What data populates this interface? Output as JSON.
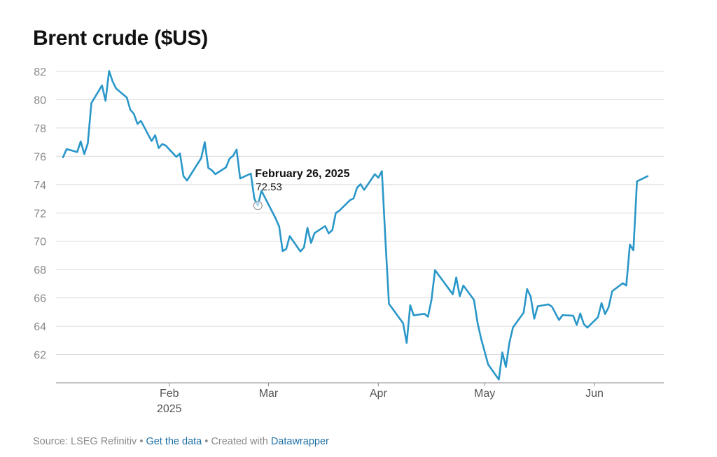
{
  "chart_data": {
    "type": "line",
    "title": "Brent crude ($US)",
    "xlabel": "",
    "ylabel": "",
    "x_ticks": [
      {
        "date": "2025-02-01",
        "label": "Feb",
        "sublabel": "2025"
      },
      {
        "date": "2025-03-01",
        "label": "Mar",
        "sublabel": ""
      },
      {
        "date": "2025-04-01",
        "label": "Apr",
        "sublabel": ""
      },
      {
        "date": "2025-05-01",
        "label": "May",
        "sublabel": ""
      },
      {
        "date": "2025-06-01",
        "label": "Jun",
        "sublabel": ""
      }
    ],
    "xlim": [
      "2025-01-02",
      "2025-06-18"
    ],
    "y_ticks": [
      62,
      64,
      66,
      68,
      70,
      72,
      74,
      76,
      78,
      80,
      82
    ],
    "ylim": [
      60,
      82
    ],
    "grid": true,
    "line_color": "#2a97c9",
    "series": [
      {
        "points": [
          [
            "2025-01-02",
            75.93
          ],
          [
            "2025-01-03",
            76.51
          ],
          [
            "2025-01-06",
            76.3
          ],
          [
            "2025-01-07",
            77.05
          ],
          [
            "2025-01-08",
            76.16
          ],
          [
            "2025-01-09",
            76.92
          ],
          [
            "2025-01-10",
            79.76
          ],
          [
            "2025-01-13",
            81.01
          ],
          [
            "2025-01-14",
            79.92
          ],
          [
            "2025-01-15",
            82.03
          ],
          [
            "2025-01-16",
            81.29
          ],
          [
            "2025-01-17",
            80.79
          ],
          [
            "2025-01-20",
            80.15
          ],
          [
            "2025-01-21",
            79.29
          ],
          [
            "2025-01-22",
            79.0
          ],
          [
            "2025-01-23",
            78.29
          ],
          [
            "2025-01-24",
            78.5
          ],
          [
            "2025-01-27",
            77.08
          ],
          [
            "2025-01-28",
            77.49
          ],
          [
            "2025-01-29",
            76.58
          ],
          [
            "2025-01-30",
            76.87
          ],
          [
            "2025-01-31",
            76.76
          ],
          [
            "2025-02-03",
            75.96
          ],
          [
            "2025-02-04",
            76.2
          ],
          [
            "2025-02-05",
            74.61
          ],
          [
            "2025-02-06",
            74.29
          ],
          [
            "2025-02-10",
            75.87
          ],
          [
            "2025-02-11",
            77.0
          ],
          [
            "2025-02-12",
            75.18
          ],
          [
            "2025-02-13",
            75.02
          ],
          [
            "2025-02-14",
            74.74
          ],
          [
            "2025-02-17",
            75.22
          ],
          [
            "2025-02-18",
            75.84
          ],
          [
            "2025-02-19",
            76.04
          ],
          [
            "2025-02-20",
            76.48
          ],
          [
            "2025-02-21",
            74.43
          ],
          [
            "2025-02-24",
            74.78
          ],
          [
            "2025-02-25",
            73.02
          ],
          [
            "2025-02-26",
            72.53
          ],
          [
            "2025-02-27",
            73.57
          ],
          [
            "2025-03-03",
            71.62
          ],
          [
            "2025-03-04",
            71.04
          ],
          [
            "2025-03-05",
            69.3
          ],
          [
            "2025-03-06",
            69.46
          ],
          [
            "2025-03-07",
            70.36
          ],
          [
            "2025-03-10",
            69.28
          ],
          [
            "2025-03-11",
            69.56
          ],
          [
            "2025-03-12",
            70.95
          ],
          [
            "2025-03-13",
            69.88
          ],
          [
            "2025-03-14",
            70.58
          ],
          [
            "2025-03-17",
            71.07
          ],
          [
            "2025-03-18",
            70.56
          ],
          [
            "2025-03-19",
            70.78
          ],
          [
            "2025-03-20",
            72.0
          ],
          [
            "2025-03-21",
            72.16
          ],
          [
            "2025-03-24",
            72.91
          ],
          [
            "2025-03-25",
            73.02
          ],
          [
            "2025-03-26",
            73.79
          ],
          [
            "2025-03-27",
            74.03
          ],
          [
            "2025-03-28",
            73.63
          ],
          [
            "2025-03-31",
            74.74
          ],
          [
            "2025-04-01",
            74.49
          ],
          [
            "2025-04-02",
            74.95
          ],
          [
            "2025-04-03",
            70.14
          ],
          [
            "2025-04-04",
            65.58
          ],
          [
            "2025-04-08",
            64.21
          ],
          [
            "2025-04-09",
            62.82
          ],
          [
            "2025-04-10",
            65.48
          ],
          [
            "2025-04-11",
            64.76
          ],
          [
            "2025-04-14",
            64.88
          ],
          [
            "2025-04-15",
            64.67
          ],
          [
            "2025-04-16",
            65.85
          ],
          [
            "2025-04-17",
            67.96
          ],
          [
            "2025-04-22",
            66.26
          ],
          [
            "2025-04-23",
            67.44
          ],
          [
            "2025-04-24",
            66.12
          ],
          [
            "2025-04-25",
            66.87
          ],
          [
            "2025-04-28",
            65.86
          ],
          [
            "2025-04-29",
            64.25
          ],
          [
            "2025-04-30",
            63.12
          ],
          [
            "2025-05-02",
            61.29
          ],
          [
            "2025-05-05",
            60.23
          ],
          [
            "2025-05-06",
            62.15
          ],
          [
            "2025-05-07",
            61.12
          ],
          [
            "2025-05-08",
            62.84
          ],
          [
            "2025-05-09",
            63.91
          ],
          [
            "2025-05-12",
            64.96
          ],
          [
            "2025-05-13",
            66.63
          ],
          [
            "2025-05-14",
            66.09
          ],
          [
            "2025-05-15",
            64.53
          ],
          [
            "2025-05-16",
            65.41
          ],
          [
            "2025-05-19",
            65.54
          ],
          [
            "2025-05-20",
            65.38
          ],
          [
            "2025-05-21",
            64.91
          ],
          [
            "2025-05-22",
            64.44
          ],
          [
            "2025-05-23",
            64.78
          ],
          [
            "2025-05-26",
            64.74
          ],
          [
            "2025-05-27",
            64.09
          ],
          [
            "2025-05-28",
            64.9
          ],
          [
            "2025-05-29",
            64.15
          ],
          [
            "2025-05-30",
            63.9
          ],
          [
            "2025-06-02",
            64.63
          ],
          [
            "2025-06-03",
            65.63
          ],
          [
            "2025-06-04",
            64.86
          ],
          [
            "2025-06-05",
            65.34
          ],
          [
            "2025-06-06",
            66.47
          ],
          [
            "2025-06-09",
            67.04
          ],
          [
            "2025-06-10",
            66.87
          ],
          [
            "2025-06-11",
            69.77
          ],
          [
            "2025-06-12",
            69.36
          ],
          [
            "2025-06-13",
            74.23
          ],
          [
            "2025-06-16",
            74.6
          ]
        ]
      }
    ],
    "tooltip": {
      "date": "2025-02-26",
      "label": "February 26, 2025",
      "value": "72.53"
    }
  },
  "footer": {
    "source": "Source: LSEG Refinitiv",
    "separator": " • ",
    "get_data": "Get the data",
    "created_with": "Created with",
    "tool": "Datawrapper"
  }
}
